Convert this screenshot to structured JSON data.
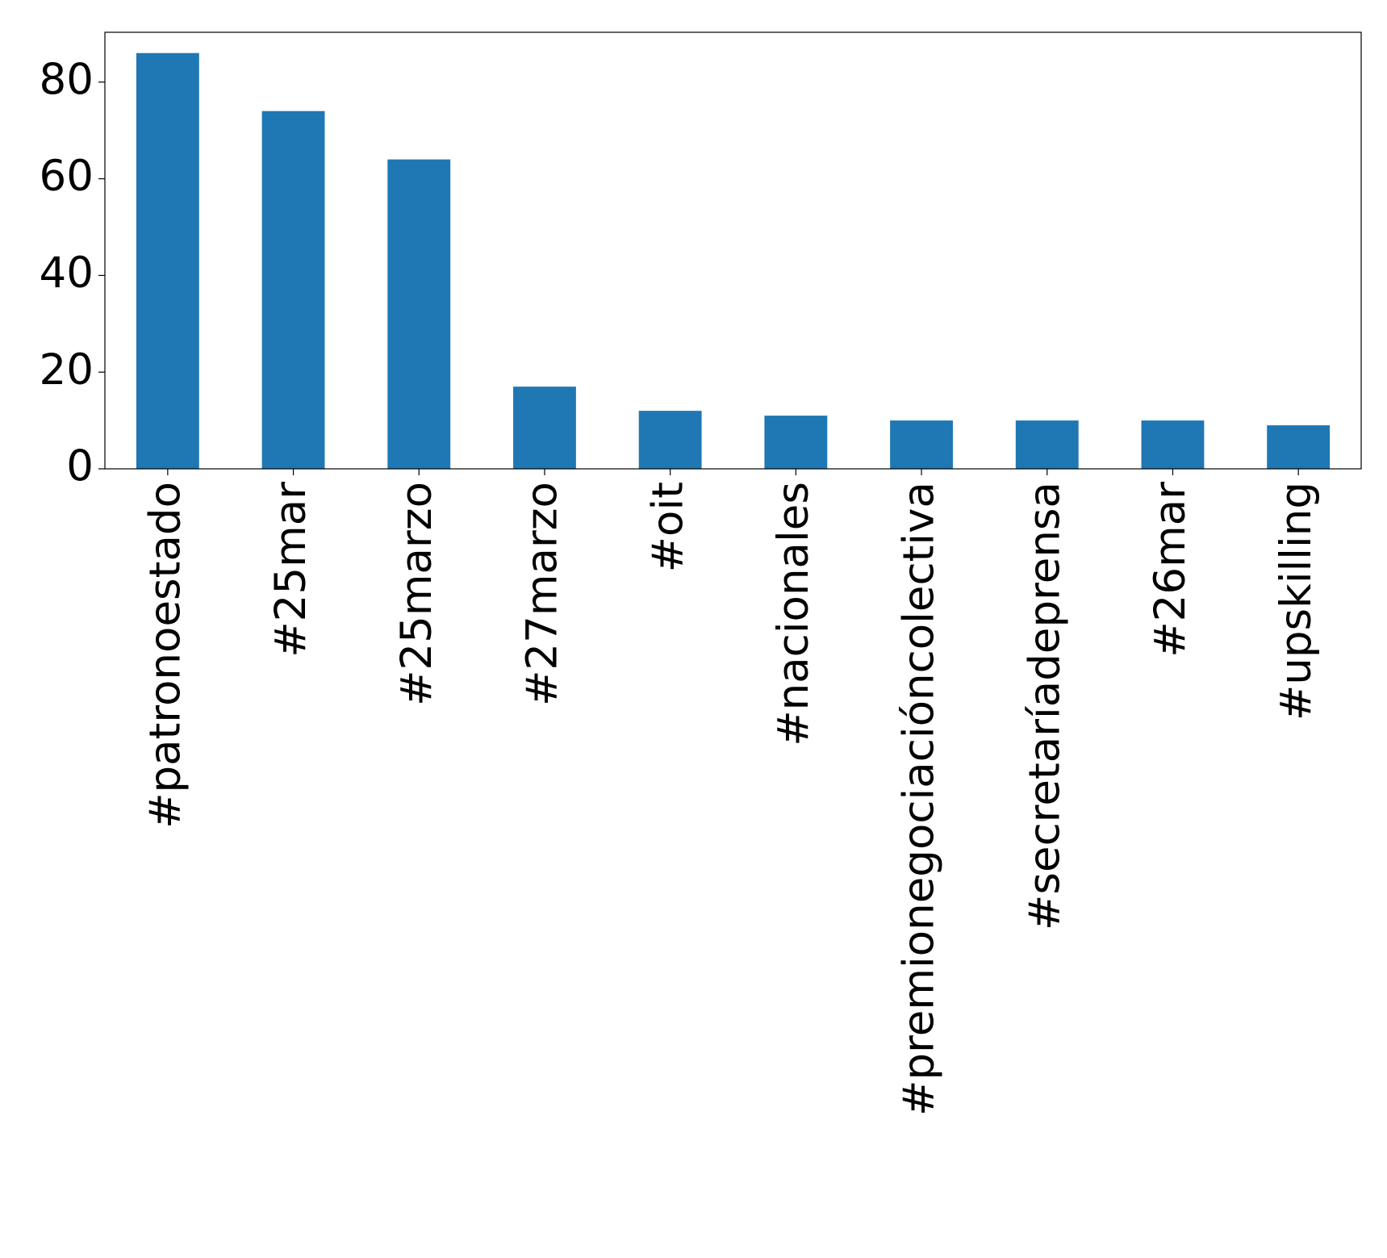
{
  "chart_data": {
    "type": "bar",
    "categories": [
      "#patronoestado",
      "#25mar",
      "#25marzo",
      "#27marzo",
      "#oit",
      "#nacionales",
      "#premionegociacióncolectiva",
      "#secretaríadeprensa",
      "#26mar",
      "#upskilling"
    ],
    "values": [
      86,
      74,
      64,
      17,
      12,
      11,
      10,
      10,
      10,
      9
    ],
    "color": "#1f77b4",
    "ylim": [
      0,
      90.3
    ],
    "yticks": [
      0,
      20,
      40,
      60,
      80
    ],
    "grid": false
  }
}
